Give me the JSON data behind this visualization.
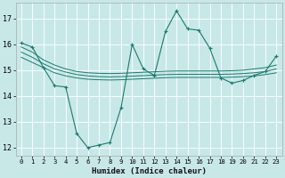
{
  "xlabel": "Humidex (Indice chaleur)",
  "background_color": "#c8e8e8",
  "grid_color": "#ffffff",
  "line_color": "#1a7a6e",
  "xlim": [
    -0.5,
    23.5
  ],
  "ylim": [
    11.7,
    17.6
  ],
  "yticks": [
    12,
    13,
    14,
    15,
    16,
    17
  ],
  "xticks": [
    0,
    1,
    2,
    3,
    4,
    5,
    6,
    7,
    8,
    9,
    10,
    11,
    12,
    13,
    14,
    15,
    16,
    17,
    18,
    19,
    20,
    21,
    22,
    23
  ],
  "main_series": {
    "x": [
      0,
      1,
      2,
      3,
      4,
      5,
      6,
      7,
      8,
      9,
      10,
      11,
      12,
      13,
      14,
      15,
      16,
      17,
      18,
      19,
      20,
      21,
      22,
      23
    ],
    "y": [
      16.05,
      15.9,
      15.1,
      14.4,
      14.35,
      12.55,
      12.0,
      12.1,
      12.2,
      13.55,
      16.0,
      15.05,
      14.8,
      16.5,
      17.3,
      16.6,
      16.55,
      15.85,
      14.7,
      14.5,
      14.6,
      14.8,
      14.95,
      15.55
    ]
  },
  "smooth_lines": [
    {
      "x": [
        0,
        1,
        2,
        3,
        4,
        5,
        6,
        7,
        8,
        9,
        10,
        11,
        12,
        13,
        14,
        15,
        16,
        17,
        18,
        19,
        20,
        21,
        22,
        23
      ],
      "y": [
        15.9,
        15.7,
        15.4,
        15.2,
        15.05,
        14.95,
        14.9,
        14.88,
        14.87,
        14.88,
        14.9,
        14.92,
        14.94,
        14.96,
        14.97,
        14.97,
        14.97,
        14.97,
        14.97,
        14.98,
        15.0,
        15.05,
        15.1,
        15.2
      ]
    },
    {
      "x": [
        0,
        1,
        2,
        3,
        4,
        5,
        6,
        7,
        8,
        9,
        10,
        11,
        12,
        13,
        14,
        15,
        16,
        17,
        18,
        19,
        20,
        21,
        22,
        23
      ],
      "y": [
        15.7,
        15.5,
        15.25,
        15.05,
        14.93,
        14.83,
        14.78,
        14.75,
        14.74,
        14.75,
        14.77,
        14.79,
        14.81,
        14.83,
        14.84,
        14.84,
        14.84,
        14.84,
        14.84,
        14.85,
        14.87,
        14.9,
        14.95,
        15.05
      ]
    },
    {
      "x": [
        0,
        1,
        2,
        3,
        4,
        5,
        6,
        7,
        8,
        9,
        10,
        11,
        12,
        13,
        14,
        15,
        16,
        17,
        18,
        19,
        20,
        21,
        22,
        23
      ],
      "y": [
        15.5,
        15.3,
        15.1,
        14.9,
        14.78,
        14.7,
        14.65,
        14.63,
        14.62,
        14.63,
        14.65,
        14.67,
        14.69,
        14.71,
        14.72,
        14.72,
        14.72,
        14.72,
        14.72,
        14.73,
        14.75,
        14.78,
        14.83,
        14.9
      ]
    }
  ]
}
